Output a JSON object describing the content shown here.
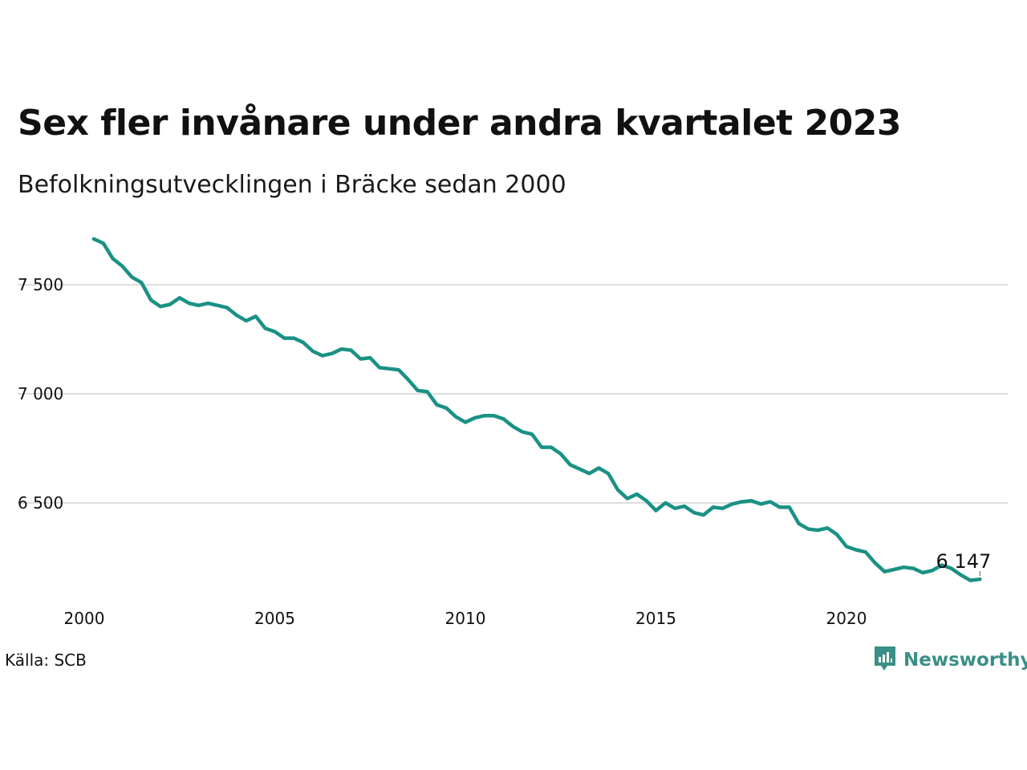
{
  "header": {
    "title": "Sex fler invånare under andra kvartalet 2023",
    "subtitle": "Befolkningsutvecklingen i Bräcke sedan 2000"
  },
  "footer": {
    "source": "Källa: SCB",
    "brand": "Newsworthy",
    "brand_icon": "newsworthy-logo-icon"
  },
  "colors": {
    "line": "#1a9185",
    "grid": "#dddddd",
    "text": "#111111",
    "brand": "#3a8f86"
  },
  "chart_data": {
    "type": "line",
    "title": "Sex fler invånare under andra kvartalet 2023",
    "subtitle": "Befolkningsutvecklingen i Bräcke sedan 2000",
    "xlabel": "",
    "ylabel": "",
    "x_ticks": [
      2000,
      2005,
      2010,
      2015,
      2020
    ],
    "x_tick_labels": [
      "2000",
      "2005",
      "2010",
      "2015",
      "2020"
    ],
    "y_ticks": [
      6500,
      7000,
      7500
    ],
    "y_tick_labels": [
      "6 500",
      "7 000",
      "7 500"
    ],
    "xlim": [
      2000,
      2024
    ],
    "ylim": [
      6050,
      7750
    ],
    "grid": true,
    "last_value_label": "6 147",
    "series": [
      {
        "x": [
          2000.25,
          2000.5,
          2000.75,
          2001.0,
          2001.25,
          2001.5,
          2001.75,
          2002.0,
          2002.25,
          2002.5,
          2002.75,
          2003.0,
          2003.25,
          2003.5,
          2003.75,
          2004.0,
          2004.25,
          2004.5,
          2004.75,
          2005.0,
          2005.25,
          2005.5,
          2005.75,
          2006.0,
          2006.25,
          2006.5,
          2006.75,
          2007.0,
          2007.25,
          2007.5,
          2007.75,
          2008.0,
          2008.25,
          2008.5,
          2008.75,
          2009.0,
          2009.25,
          2009.5,
          2009.75,
          2010.0,
          2010.25,
          2010.5,
          2010.75,
          2011.0,
          2011.25,
          2011.5,
          2011.75,
          2012.0,
          2012.25,
          2012.5,
          2012.75,
          2013.0,
          2013.25,
          2013.5,
          2013.75,
          2014.0,
          2014.25,
          2014.5,
          2014.75,
          2015.0,
          2015.25,
          2015.5,
          2015.75,
          2016.0,
          2016.25,
          2016.5,
          2016.75,
          2017.0,
          2017.25,
          2017.5,
          2017.75,
          2018.0,
          2018.25,
          2018.5,
          2018.75,
          2019.0,
          2019.25,
          2019.5,
          2019.75,
          2020.0,
          2020.25,
          2020.5,
          2020.75,
          2021.0,
          2021.25,
          2021.5,
          2021.75,
          2022.0,
          2022.25,
          2022.5,
          2022.75,
          2023.0,
          2023.25,
          2023.5
        ],
        "values": [
          7710,
          7690,
          7620,
          7585,
          7535,
          7510,
          7430,
          7400,
          7410,
          7440,
          7415,
          7405,
          7415,
          7405,
          7395,
          7360,
          7335,
          7355,
          7300,
          7285,
          7255,
          7255,
          7235,
          7195,
          7175,
          7185,
          7205,
          7200,
          7160,
          7165,
          7120,
          7115,
          7110,
          7065,
          7015,
          7010,
          6950,
          6935,
          6895,
          6870,
          6890,
          6900,
          6900,
          6885,
          6850,
          6825,
          6815,
          6755,
          6755,
          6725,
          6675,
          6655,
          6635,
          6660,
          6635,
          6560,
          6520,
          6540,
          6510,
          6465,
          6500,
          6475,
          6485,
          6455,
          6445,
          6480,
          6475,
          6495,
          6505,
          6510,
          6495,
          6505,
          6480,
          6480,
          6405,
          6380,
          6375,
          6385,
          6355,
          6300,
          6285,
          6275,
          6225,
          6185,
          6195,
          6205,
          6200,
          6180,
          6190,
          6215,
          6200,
          6170,
          6145,
          6150
        ]
      }
    ]
  }
}
